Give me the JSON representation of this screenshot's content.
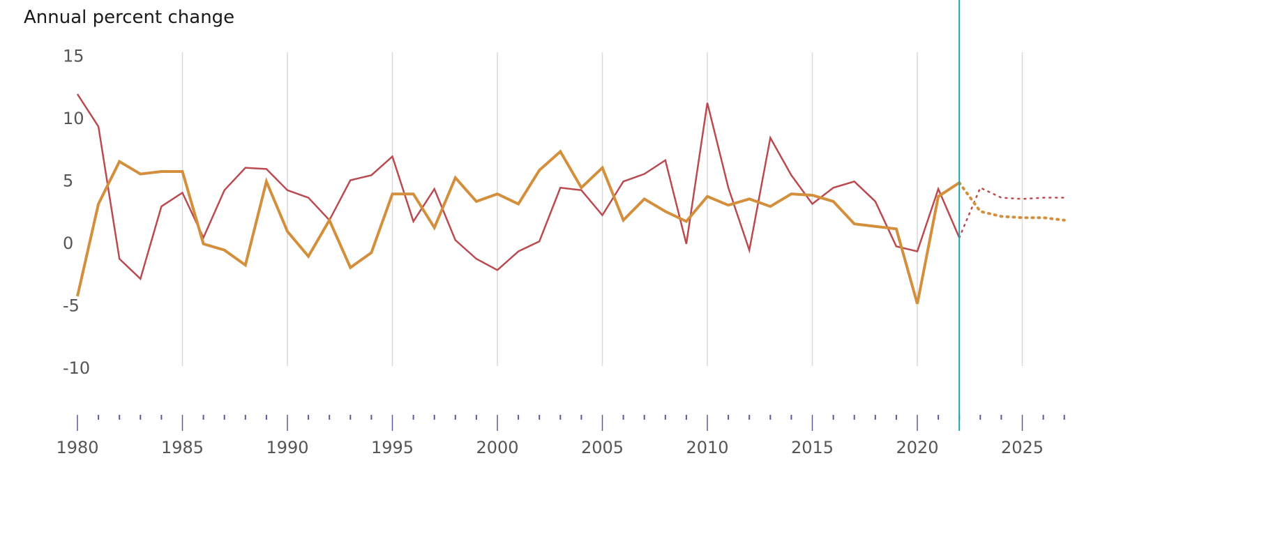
{
  "chart_data": {
    "type": "line",
    "title": "Annual percent change",
    "xlabel": "",
    "ylabel": "",
    "xlim": [
      1980,
      2027
    ],
    "ylim": [
      -10,
      15
    ],
    "yticks": [
      15,
      10,
      5,
      0,
      -5,
      -10
    ],
    "xticks_major": [
      1980,
      1985,
      1990,
      1995,
      2000,
      2005,
      2010,
      2015,
      2020,
      2025
    ],
    "xticks_minor_step": 1,
    "grid": "vertical",
    "marker_year": 2022,
    "colors": {
      "series_a": "#b94a50",
      "series_b": "#d38f3c",
      "marker": "#1aa3b0",
      "grid": "#d9d9d9",
      "tick": "#5a5a9a"
    },
    "series": [
      {
        "key": "series_a",
        "x": [
          1980,
          1981,
          1982,
          1983,
          1984,
          1985,
          1986,
          1987,
          1988,
          1989,
          1990,
          1991,
          1992,
          1993,
          1994,
          1995,
          1996,
          1997,
          1998,
          1999,
          2000,
          2001,
          2002,
          2003,
          2004,
          2005,
          2006,
          2007,
          2008,
          2009,
          2010,
          2011,
          2012,
          2013,
          2014,
          2015,
          2016,
          2017,
          2018,
          2019,
          2020,
          2021,
          2022
        ],
        "values": [
          11.9,
          9.3,
          -1.3,
          -2.9,
          2.9,
          4.0,
          0.4,
          4.2,
          6.0,
          5.9,
          4.2,
          3.6,
          1.8,
          5.0,
          5.4,
          6.9,
          1.7,
          4.3,
          0.2,
          -1.3,
          -2.2,
          -0.7,
          0.1,
          4.4,
          4.2,
          2.2,
          4.9,
          5.5,
          6.6,
          -0.1,
          11.2,
          4.4,
          -0.6,
          8.4,
          5.4,
          3.1,
          4.4,
          4.9,
          3.3,
          -0.3,
          -0.7,
          4.3,
          0.4
        ],
        "projection_x": [
          2022,
          2023,
          2024,
          2025,
          2026,
          2027
        ],
        "projection_values": [
          0.4,
          4.4,
          3.6,
          3.5,
          3.6,
          3.6
        ],
        "line_width": 2.5
      },
      {
        "key": "series_b",
        "x": [
          1980,
          1981,
          1982,
          1983,
          1984,
          1985,
          1986,
          1987,
          1988,
          1989,
          1990,
          1991,
          1992,
          1993,
          1994,
          1995,
          1996,
          1997,
          1998,
          1999,
          2000,
          2001,
          2002,
          2003,
          2004,
          2005,
          2006,
          2007,
          2008,
          2009,
          2010,
          2011,
          2012,
          2013,
          2014,
          2015,
          2016,
          2017,
          2018,
          2019,
          2020,
          2021,
          2022
        ],
        "values": [
          -4.3,
          3.1,
          6.5,
          5.5,
          5.7,
          5.7,
          -0.1,
          -0.6,
          -1.8,
          4.9,
          0.9,
          -1.1,
          1.8,
          -2.0,
          -0.8,
          3.9,
          3.9,
          1.2,
          5.2,
          3.3,
          3.9,
          3.1,
          5.8,
          7.3,
          4.4,
          6.0,
          1.8,
          3.5,
          2.5,
          1.7,
          3.7,
          3.0,
          3.5,
          2.9,
          3.9,
          3.8,
          3.3,
          1.5,
          1.3,
          1.1,
          -4.9,
          3.7,
          4.8
        ],
        "projection_x": [
          2022,
          2023,
          2024,
          2025,
          2026,
          2027
        ],
        "projection_values": [
          4.8,
          2.5,
          2.1,
          2.0,
          2.0,
          1.8
        ],
        "line_width": 4
      }
    ]
  }
}
